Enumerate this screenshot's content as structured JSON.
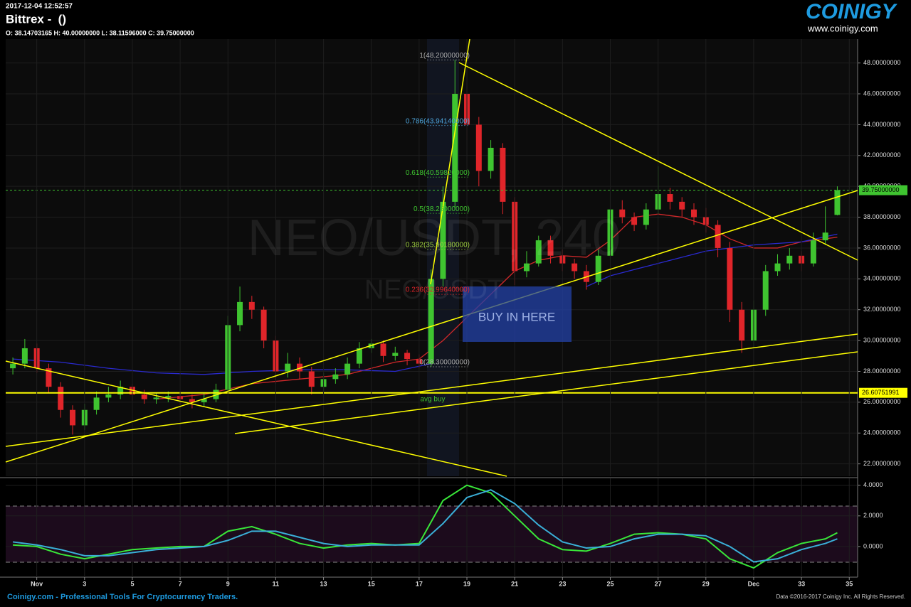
{
  "header": {
    "timestamp": "2017-12-04 12:52:57",
    "title": "Bittrex -  ()",
    "ohlc": "O: 38.14703165 H: 40.00000000 L: 38.11596000 C: 39.75000000"
  },
  "logo": {
    "name": "COINIGY",
    "url": "www.coinigy.com"
  },
  "footer": {
    "left": "Coinigy.com - Professional Tools For Cryptocurrency Traders.",
    "right": "Data ©2016-2017 Coinigy Inc. All Rights Reserved."
  },
  "chart_data": [
    {
      "type": "candlestick",
      "watermark": [
        "NEO/USDT, 240",
        "NEO/USDT"
      ],
      "annotations": [
        "BUY IN HERE",
        "avg buy"
      ],
      "x": [
        0,
        0.5,
        1,
        1.5,
        2,
        2.5,
        3,
        3.5,
        4,
        4.5,
        5,
        5.5,
        6,
        6.5,
        7,
        7.5,
        8,
        8.5,
        9,
        9.5,
        10,
        10.5,
        11,
        11.5,
        12,
        12.5,
        13,
        13.5,
        14,
        14.5,
        15,
        15.5,
        16,
        16.5,
        17,
        17.5,
        18,
        18.5,
        19,
        19.5,
        20,
        20.5,
        21,
        21.5,
        22,
        22.5,
        23,
        23.5,
        24,
        24.5,
        25,
        25.5,
        26,
        26.5,
        27,
        27.5,
        28,
        28.5,
        29,
        29.5,
        30,
        30.5,
        31,
        31.5,
        32,
        32.5,
        33,
        33.5,
        34,
        34.5
      ],
      "open": [
        28.2,
        28.5,
        29.5,
        28.2,
        27,
        25.5,
        24.5,
        25.5,
        26.3,
        26.5,
        27,
        26.5,
        26.2,
        26.3,
        26.4,
        26.2,
        26,
        26.2,
        26.8,
        31,
        32.5,
        32,
        30,
        28,
        28.5,
        28,
        27,
        27.5,
        27.8,
        28.5,
        29.5,
        29.8,
        29,
        29.2,
        28.8,
        28.5,
        34,
        39,
        46,
        44,
        41,
        42.5,
        39,
        34.5,
        35,
        36.5,
        35.5,
        35,
        34.5,
        33.8,
        35.5,
        38.5,
        38,
        37.5,
        38.5,
        39.5,
        39,
        38.5,
        38,
        37.5,
        36,
        32,
        30,
        32,
        34.5,
        35,
        35.5,
        35,
        36.5,
        38.14703165
      ],
      "high": [
        28.9,
        30.1,
        29.8,
        28.5,
        27.3,
        25.8,
        25.9,
        26.7,
        27,
        27.4,
        27.2,
        26.8,
        26.6,
        26.7,
        26.7,
        26.5,
        26.6,
        27.2,
        31.6,
        33.5,
        32.9,
        32.2,
        30.3,
        29.2,
        28.9,
        28.3,
        27.9,
        28.2,
        28.9,
        29.9,
        30.1,
        30,
        29.6,
        29.4,
        29.1,
        34.6,
        40,
        48.2,
        46.5,
        44.5,
        43,
        42.8,
        39.3,
        35.8,
        36.8,
        36.8,
        35.9,
        35.3,
        34.9,
        35.9,
        39.7,
        39.1,
        38.3,
        38.9,
        41.3,
        39.9,
        39.3,
        38.9,
        38.6,
        37.8,
        36.4,
        32.5,
        32.6,
        34.9,
        35.6,
        36,
        35.8,
        37,
        38.7,
        40
      ],
      "low": [
        27.8,
        28.2,
        27.9,
        26.6,
        25,
        23.9,
        24.2,
        25.2,
        26,
        26.2,
        26.1,
        25.9,
        25.9,
        26,
        25.8,
        25.6,
        25.7,
        26,
        26.6,
        30.6,
        31.4,
        29.5,
        27.2,
        27.6,
        27.5,
        26.5,
        26.7,
        27.2,
        27.5,
        28.2,
        29.2,
        28.6,
        28.7,
        28.4,
        28.2,
        28.3,
        33.5,
        38.6,
        43,
        40,
        40.5,
        38.2,
        33.6,
        34.1,
        34.8,
        35,
        34.5,
        34,
        33.3,
        33.6,
        35.2,
        37.6,
        37.1,
        37.2,
        38.2,
        38.5,
        38,
        37.5,
        37,
        35.4,
        31.2,
        29.2,
        29.6,
        31.6,
        34.2,
        34.6,
        34.5,
        34.8,
        36.2,
        38.11596
      ],
      "close": [
        28.5,
        29.5,
        28.2,
        27,
        25.5,
        24.5,
        25.5,
        26.3,
        26.5,
        27,
        26.5,
        26.2,
        26.3,
        26.4,
        26.2,
        26,
        26.2,
        26.8,
        31,
        32.5,
        32,
        30,
        28,
        28.5,
        28,
        27,
        27.5,
        27.8,
        28.5,
        29.5,
        29.8,
        29,
        29.2,
        28.8,
        28.5,
        34,
        39,
        46,
        44,
        41,
        42.5,
        39,
        34.5,
        35,
        36.5,
        35.5,
        35,
        34.5,
        33.8,
        35.5,
        38.5,
        38,
        37.5,
        38.5,
        39.5,
        39,
        38.5,
        38,
        37.5,
        36,
        32,
        30,
        32,
        34.5,
        35,
        35.5,
        35,
        36.5,
        37,
        39.75
      ],
      "up_color": "#3fc430",
      "down_color": "#e0252a",
      "series": [
        {
          "color": "#d0282a",
          "x": [
            6,
            8,
            10,
            12,
            14,
            16,
            17,
            18,
            19,
            20,
            21,
            22,
            23,
            24,
            25,
            26,
            27,
            28,
            29,
            30,
            31,
            32,
            33,
            34,
            34.5
          ],
          "values": [
            26.2,
            26.5,
            27.2,
            27.5,
            27.8,
            28.6,
            28.8,
            30,
            31.5,
            33,
            34.5,
            35.2,
            35.5,
            35.4,
            36.5,
            38,
            38.2,
            38,
            37.5,
            36.6,
            36,
            36,
            36.4,
            36.6,
            36.7
          ]
        },
        {
          "color": "#2a2ad0",
          "x": [
            0,
            2,
            4,
            6,
            8,
            10,
            12,
            14,
            16,
            17.5,
            20,
            24,
            25,
            27,
            29,
            31,
            33,
            34.5
          ],
          "values": [
            28.8,
            28.6,
            28.2,
            27.9,
            27.8,
            28,
            28.1,
            28.1,
            28,
            28.5,
            null,
            33.5,
            34.2,
            35,
            35.8,
            36.2,
            36.4,
            36.9
          ]
        }
      ],
      "hlines": [
        {
          "value": 39.75,
          "label": "39.75000000",
          "color": "#3fc430"
        },
        {
          "value": 26.60751991,
          "label": "26.60751991",
          "color": "#ffff00"
        }
      ],
      "fib": [
        {
          "value": 48.2,
          "label": "1(48.20000000)",
          "color": "#aaaaaa"
        },
        {
          "value": 43.9414,
          "label": "0.786(43.94140000)",
          "color": "#4da3d9"
        },
        {
          "value": 40.5982,
          "label": "0.618(40.59820000)",
          "color": "#3fc430"
        },
        {
          "value": 38.25,
          "label": "0.5(38.25000000)",
          "color": "#3fc430"
        },
        {
          "value": 35.9018,
          "label": "0.382(35.90180000)",
          "color": "#a0d040"
        },
        {
          "value": 32.9964,
          "label": "0.236(32.99640000)",
          "color": "#e0252a"
        },
        {
          "value": 28.3,
          "label": "0(28.30000000)",
          "color": "#aaaaaa"
        }
      ],
      "xlim": [
        -0.3,
        35.35
      ],
      "ylim": [
        21.2,
        49.55
      ],
      "yticks": [
        {
          "value": 22,
          "label": "22.00000000"
        },
        {
          "value": 24,
          "label": "24.00000000"
        },
        {
          "value": 26,
          "label": "26.00000000"
        },
        {
          "value": 28,
          "label": "28.00000000"
        },
        {
          "value": 30,
          "label": "30.00000000"
        },
        {
          "value": 32,
          "label": "32.00000000"
        },
        {
          "value": 34,
          "label": "34.00000000"
        },
        {
          "value": 36,
          "label": "36.00000000"
        },
        {
          "value": 38,
          "label": "38.00000000"
        },
        {
          "value": 40,
          "label": "40.00000000"
        },
        {
          "value": 42,
          "label": "42.00000000"
        },
        {
          "value": 44,
          "label": "44.00000000"
        },
        {
          "value": 46,
          "label": "46.00000000"
        },
        {
          "value": 48,
          "label": "48.00000000"
        }
      ],
      "grid": true
    },
    {
      "type": "line",
      "x": [
        0,
        1,
        2,
        3,
        4,
        5,
        6,
        7,
        8,
        9,
        10,
        11,
        12,
        13,
        14,
        15,
        16,
        17,
        18,
        19,
        20,
        21,
        22,
        23,
        24,
        25,
        26,
        27,
        28,
        29,
        30,
        31,
        32,
        33,
        34,
        34.5
      ],
      "series": [
        {
          "color": "#39e639",
          "values": [
            0.1,
            0,
            -0.5,
            -0.8,
            -0.5,
            -0.2,
            -0.1,
            0,
            0,
            1,
            1.3,
            0.8,
            0.2,
            -0.1,
            0.1,
            0.2,
            0.1,
            0.2,
            3,
            4,
            3.5,
            2,
            0.5,
            -0.2,
            -0.3,
            0.2,
            0.8,
            0.9,
            0.8,
            0.5,
            -0.8,
            -1.4,
            -0.4,
            0.2,
            0.5,
            0.9
          ]
        },
        {
          "color": "#3ab0d8",
          "values": [
            0.3,
            0.1,
            -0.2,
            -0.6,
            -0.6,
            -0.4,
            -0.2,
            -0.1,
            0,
            0.4,
            1,
            1,
            0.6,
            0.2,
            0,
            0.1,
            0.1,
            0.1,
            1.5,
            3.2,
            3.7,
            2.8,
            1.4,
            0.3,
            -0.1,
            0,
            0.5,
            0.8,
            0.8,
            0.7,
            0,
            -1,
            -0.8,
            -0.2,
            0.2,
            0.5
          ]
        }
      ],
      "xlim": [
        -0.3,
        35.35
      ],
      "ylim": [
        -2,
        4.45
      ],
      "xticks": [
        {
          "value": 1,
          "label": "Nov"
        },
        3,
        5,
        7,
        9,
        11,
        13,
        15,
        17,
        19,
        21,
        23,
        25,
        27,
        29,
        {
          "value": 31,
          "label": "Dec"
        },
        33,
        35
      ],
      "yticks": [
        {
          "value": 0,
          "label": "0.0000"
        },
        {
          "value": 2,
          "label": "2.0000"
        },
        {
          "value": 4,
          "label": "4.0000"
        }
      ],
      "grid": true
    }
  ]
}
